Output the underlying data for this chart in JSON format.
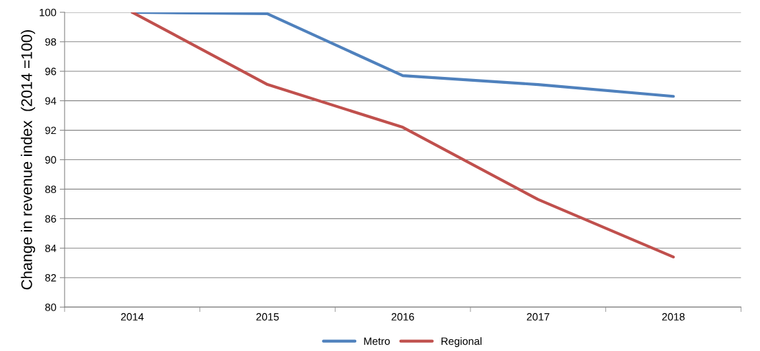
{
  "chart_data": {
    "type": "line",
    "ylabel": "Change in revenue index  (2014 =100)",
    "categories": [
      "2014",
      "2015",
      "2016",
      "2017",
      "2018"
    ],
    "series": [
      {
        "name": "Metro",
        "color": "#4f81bd",
        "values": [
          100,
          99.9,
          95.7,
          95.1,
          94.3
        ]
      },
      {
        "name": "Regional",
        "color": "#c0504d",
        "values": [
          100,
          95.1,
          92.2,
          87.3,
          83.4
        ]
      }
    ],
    "ylim": [
      80,
      100
    ],
    "yticks": [
      80,
      82,
      84,
      86,
      88,
      90,
      92,
      94,
      96,
      98,
      100
    ],
    "grid": "y",
    "legend": "bottom",
    "marker": "none",
    "line_style": "solid"
  }
}
